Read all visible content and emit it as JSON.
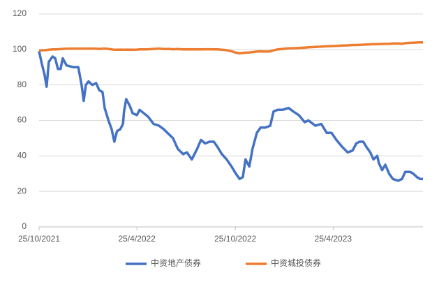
{
  "chart_data": {
    "type": "line",
    "x": [
      "2021-10-25",
      "2021-10-30",
      "2021-11-04",
      "2021-11-08",
      "2021-11-12",
      "2021-11-19",
      "2021-11-24",
      "2021-11-29",
      "2021-12-04",
      "2021-12-08",
      "2021-12-15",
      "2021-12-28",
      "2022-01-06",
      "2022-01-12",
      "2022-01-16",
      "2022-01-20",
      "2022-01-25",
      "2022-02-01",
      "2022-02-08",
      "2022-02-14",
      "2022-02-20",
      "2022-02-24",
      "2022-03-03",
      "2022-03-09",
      "2022-03-14",
      "2022-03-19",
      "2022-03-25",
      "2022-03-30",
      "2022-04-01",
      "2022-04-05",
      "2022-04-12",
      "2022-04-17",
      "2022-04-25",
      "2022-04-30",
      "2022-05-08",
      "2022-05-16",
      "2022-05-26",
      "2022-06-05",
      "2022-06-14",
      "2022-06-24",
      "2022-07-01",
      "2022-07-10",
      "2022-07-20",
      "2022-07-27",
      "2022-08-05",
      "2022-08-15",
      "2022-08-22",
      "2022-08-30",
      "2022-09-07",
      "2022-09-15",
      "2022-09-22",
      "2022-09-30",
      "2022-10-09",
      "2022-10-18",
      "2022-10-26",
      "2022-11-02",
      "2022-11-08",
      "2022-11-13",
      "2022-11-20",
      "2022-11-26",
      "2022-12-04",
      "2022-12-11",
      "2022-12-20",
      "2022-12-29",
      "2023-01-04",
      "2023-01-12",
      "2023-01-21",
      "2023-02-01",
      "2023-02-10",
      "2023-02-20",
      "2023-03-03",
      "2023-03-10",
      "2023-03-23",
      "2023-04-03",
      "2023-04-13",
      "2023-04-22",
      "2023-05-01",
      "2023-05-12",
      "2023-05-22",
      "2023-05-31",
      "2023-06-07",
      "2023-06-13",
      "2023-06-20",
      "2023-06-26",
      "2023-07-03",
      "2023-07-09",
      "2023-07-16",
      "2023-07-19",
      "2023-07-25",
      "2023-07-31",
      "2023-08-07",
      "2023-08-14",
      "2023-08-24",
      "2023-08-31",
      "2023-09-06",
      "2023-09-15",
      "2023-09-21",
      "2023-09-28",
      "2023-10-04",
      "2023-10-09"
    ],
    "series": [
      {
        "name": "中资地产债券",
        "color": "#4472c4",
        "values": [
          99,
          92,
          86,
          79,
          93,
          96,
          95,
          89,
          89,
          95,
          91,
          90,
          90,
          80,
          71,
          80,
          82,
          80,
          81,
          77,
          76,
          67,
          60,
          55,
          48,
          54,
          55,
          58,
          65,
          72,
          68,
          64,
          63,
          66,
          64,
          62,
          58,
          57,
          55,
          52,
          50,
          44,
          41,
          42,
          38,
          44,
          49,
          47,
          48,
          48,
          45,
          41,
          38,
          34,
          30,
          27,
          28,
          38,
          34,
          44,
          53,
          56,
          56,
          57,
          65,
          66,
          66,
          67,
          65,
          63,
          59,
          60,
          57,
          58,
          53,
          53,
          49,
          45,
          42,
          43,
          47,
          48,
          48,
          45,
          42,
          38,
          40,
          36,
          32,
          35,
          30,
          27,
          26,
          27,
          31,
          31,
          30,
          28,
          27,
          27
        ]
      },
      {
        "name": "中资城投债券",
        "color": "#ed7d31",
        "values": [
          99.5,
          99.5,
          99.6,
          99.7,
          99.8,
          100,
          100,
          100.1,
          100.2,
          100.3,
          100.4,
          100.5,
          100.5,
          100.5,
          100.5,
          100.5,
          100.5,
          100.5,
          100.4,
          100.3,
          100.4,
          100.5,
          100.3,
          100,
          99.8,
          99.8,
          99.9,
          99.8,
          99.8,
          99.9,
          99.8,
          99.8,
          99.9,
          100,
          100,
          100.1,
          100.3,
          100.5,
          100.2,
          100.3,
          100.1,
          100.2,
          100,
          100.1,
          100,
          100.1,
          100,
          100.1,
          100.1,
          100,
          100,
          99.8,
          99.6,
          99,
          98.2,
          97.8,
          98,
          98.2,
          98.3,
          98.5,
          98.8,
          98.9,
          98.8,
          98.9,
          99.5,
          100,
          100.3,
          100.6,
          100.7,
          100.8,
          101,
          101.2,
          101.4,
          101.6,
          101.8,
          101.9,
          102,
          102.2,
          102.3,
          102.5,
          102.5,
          102.6,
          102.7,
          102.8,
          102.9,
          103,
          103,
          103.1,
          103.1,
          103.2,
          103.2,
          103.3,
          103.4,
          103.2,
          103.5,
          103.7,
          103.8,
          103.9,
          104,
          104
        ]
      }
    ],
    "xlim": [
      "2021-10-25",
      "2023-10-09"
    ],
    "xticks": [
      {
        "value": "2021-10-25",
        "label": "25/10/2021"
      },
      {
        "value": "2022-04-25",
        "label": "25/4/2022"
      },
      {
        "value": "2022-10-25",
        "label": "25/10/2022"
      },
      {
        "value": "2023-04-25",
        "label": "25/4/2023"
      }
    ],
    "ylim": [
      0,
      120
    ],
    "yticks": [
      0,
      20,
      40,
      60,
      80,
      100,
      120
    ],
    "grid": true,
    "legend": "bottom"
  }
}
